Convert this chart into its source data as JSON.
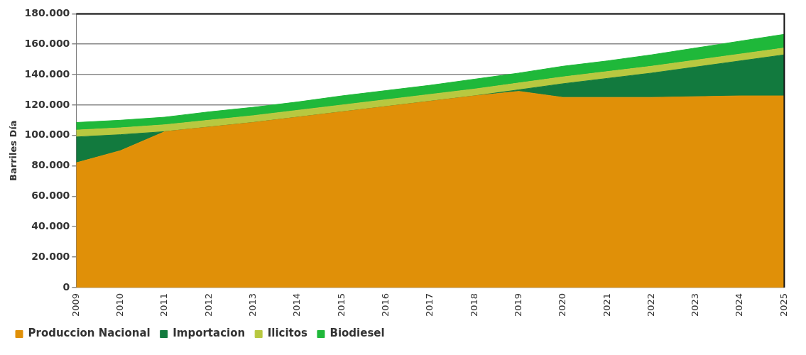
{
  "chart_data": {
    "type": "area",
    "ylabel": "Barriles Día",
    "stacked": true,
    "categories": [
      "2009",
      "2010",
      "2011",
      "2012",
      "2013",
      "2014",
      "2015",
      "2016",
      "2017",
      "2018",
      "2019",
      "2020",
      "2021",
      "2022",
      "2023",
      "2024",
      "2025"
    ],
    "series": [
      {
        "name": "Produccion Nacional",
        "color": "#e09008",
        "values": [
          82000,
          90000,
          102500,
          105500,
          108500,
          112000,
          115500,
          119000,
          122500,
          126000,
          129000,
          125000,
          125000,
          125000,
          125500,
          126000,
          126000
        ]
      },
      {
        "name": "Importacion",
        "color": "#127a3e",
        "values": [
          17000,
          10500,
          0,
          0,
          0,
          0,
          0,
          0,
          0,
          0,
          1000,
          9000,
          12500,
          16000,
          19500,
          23000,
          27000
        ]
      },
      {
        "name": "Ilicitos",
        "color": "#b8c840",
        "values": [
          4500,
          4500,
          4500,
          4500,
          4500,
          4500,
          4500,
          4500,
          4500,
          4500,
          4500,
          4500,
          4500,
          4500,
          4500,
          4500,
          4500
        ]
      },
      {
        "name": "Biodiesel",
        "color": "#1fb83a",
        "values": [
          5000,
          5000,
          5000,
          5500,
          5500,
          5500,
          6000,
          6000,
          6000,
          6500,
          6500,
          7000,
          7000,
          7500,
          8000,
          8500,
          9000
        ]
      }
    ],
    "ylim": [
      0,
      180000
    ],
    "yticks": [
      {
        "value": 0,
        "label": "0"
      },
      {
        "value": 20000,
        "label": "20.000"
      },
      {
        "value": 40000,
        "label": "40.000"
      },
      {
        "value": 60000,
        "label": "60.000"
      },
      {
        "value": 80000,
        "label": "80.000"
      },
      {
        "value": 100000,
        "label": "100.000"
      },
      {
        "value": 120000,
        "label": "120.000"
      },
      {
        "value": 140000,
        "label": "140.000"
      },
      {
        "value": 160000,
        "label": "160.000"
      },
      {
        "value": 180000,
        "label": "180.000"
      }
    ],
    "grid": "y",
    "legend": "bottom"
  }
}
